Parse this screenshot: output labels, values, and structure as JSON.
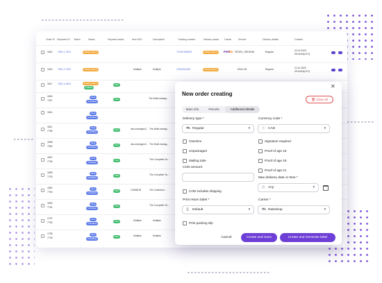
{
  "table": {
    "headers": [
      "Order ID",
      "Shipment ID",
      "Batch",
      "Status",
      "Payment status",
      "Item SKU",
      "Description",
      "Tracking number",
      "Delivery status",
      "Carrier",
      "Service",
      "Delivery details",
      "Created"
    ],
    "rows": [
      {
        "order_id": "1820",
        "shipment_id": "TMD-1-7001",
        "status": "Waiting pickup",
        "sku": "",
        "description": "",
        "tracking": "7FntS7568100",
        "delivery_status": "Waiting pickup",
        "carrier": "FedEx",
        "service": "FEDEX_GROUND",
        "details": "Regular",
        "created": "11.01.2023 09:44:54(UTC)"
      },
      {
        "order_id": "1819",
        "shipment_id": "TMD-1-7000",
        "status": "Waiting pickup",
        "sku": "Multiple",
        "description": "Multiple",
        "tracking": "1Z5h4S1M02",
        "delivery_status": "Waiting pickup",
        "carrier": "",
        "service": "EKM UB",
        "details": "Regular",
        "created": "11.Jn.2023 09:44:53(UTC)"
      },
      {
        "order_id": "1817",
        "shipment_id": "TMD-1-6303",
        "status": "Waiting pickup",
        "status2": "Fulfilled",
        "payment": "Paid",
        "sku": "",
        "description": "",
        "tracking": "",
        "delivery_status": "",
        "carrier": "",
        "service": "",
        "details": "",
        "created": "11.01.2023"
      },
      {
        "order_id": "1816",
        "order_id2": "7007",
        "status": "New",
        "status2": "Unfulfilled",
        "payment": "Paid",
        "sku": "",
        "description": "The Multi-manag..."
      },
      {
        "order_id": "1814",
        "status": "New",
        "status2": "Unfulfilled"
      },
      {
        "order_id": "1811",
        "order_id2": "7756",
        "status": "New",
        "status2": "Unfulfilled",
        "payment": "Paid",
        "sku": "sku-managed-1",
        "description": "The Multi-manag..."
      },
      {
        "order_id": "1808",
        "order_id2": "7504",
        "status": "New",
        "status2": "Unfulfilled",
        "payment": "Paid",
        "sku": "sku-managed-1",
        "description": "The Multi-manag..."
      },
      {
        "order_id": "1807",
        "order_id2": "7754",
        "status": "New",
        "status2": "Unfulfilled",
        "payment": "Paid",
        "sku": "",
        "description": "The Complete Sn..."
      },
      {
        "order_id": "1805",
        "order_id2": "7700",
        "status": "New",
        "status2": "Unfulfilled",
        "payment": "Paid",
        "sku": "",
        "description": "The Complete Sn..."
      },
      {
        "order_id": "1802",
        "order_id2": "7752",
        "status": "New",
        "status2": "Unfulfilled",
        "payment": "Paid",
        "sku": "12345678",
        "description": "The Collection..."
      },
      {
        "order_id": "1800",
        "order_id2": "7751",
        "status": "New",
        "status2": "Unfulfilled",
        "payment": "Paid",
        "sku": "",
        "description": "The Complete Sn..."
      },
      {
        "order_id": "1797",
        "order_id2": "7750",
        "status": "New",
        "status2": "Unfulfilled",
        "payment": "Paid",
        "sku": "Multiple",
        "description": "Multiple"
      },
      {
        "order_id": "1796",
        "order_id2": "7749",
        "status": "New",
        "status2": "Unfulfilled",
        "payment": "Paid",
        "sku": "Multiple",
        "description": "Multiple"
      }
    ]
  },
  "modal": {
    "title": "New order creating",
    "clear_all": "Clear all",
    "close": "✕",
    "tabs": [
      {
        "label": "Main info"
      },
      {
        "label": "Parcels"
      },
      {
        "label": "Additional details"
      }
    ],
    "delivery_type": {
      "label": "Delivery type *",
      "value": "Regular"
    },
    "currency_code": {
      "label": "Currency code *",
      "value": "CAD"
    },
    "left_checks": [
      {
        "label": "Oversize"
      },
      {
        "label": "Unpackaged"
      },
      {
        "label": "Mailing tube"
      }
    ],
    "right_checks": [
      {
        "label": "Signature required"
      },
      {
        "label": "Proof of age 18"
      },
      {
        "label": "Proof of age 19"
      },
      {
        "label": "Proof of age 21"
      }
    ],
    "cod_amount": {
      "label": "COD amount",
      "value": ""
    },
    "cod_includes_shipping": "COD includes shipping",
    "max_delivery": {
      "label": "Max delivery date or time *",
      "value": "Any"
    },
    "print_return_label": {
      "label": "Print return label *",
      "value": "Default"
    },
    "carrier": {
      "label": "Carrier *",
      "value": "Rateshop"
    },
    "print_packing_slip": "Print packing slip",
    "buttons": {
      "cancel": "Cancel",
      "create_save": "Create and Save",
      "create_generate": "Create and Generate label"
    }
  },
  "colors": {
    "accent": "#6d3fd6",
    "danger": "#e24d4d",
    "waiting": "#f2a93b",
    "paid": "#3dbb6b",
    "new": "#5b7ae8"
  }
}
